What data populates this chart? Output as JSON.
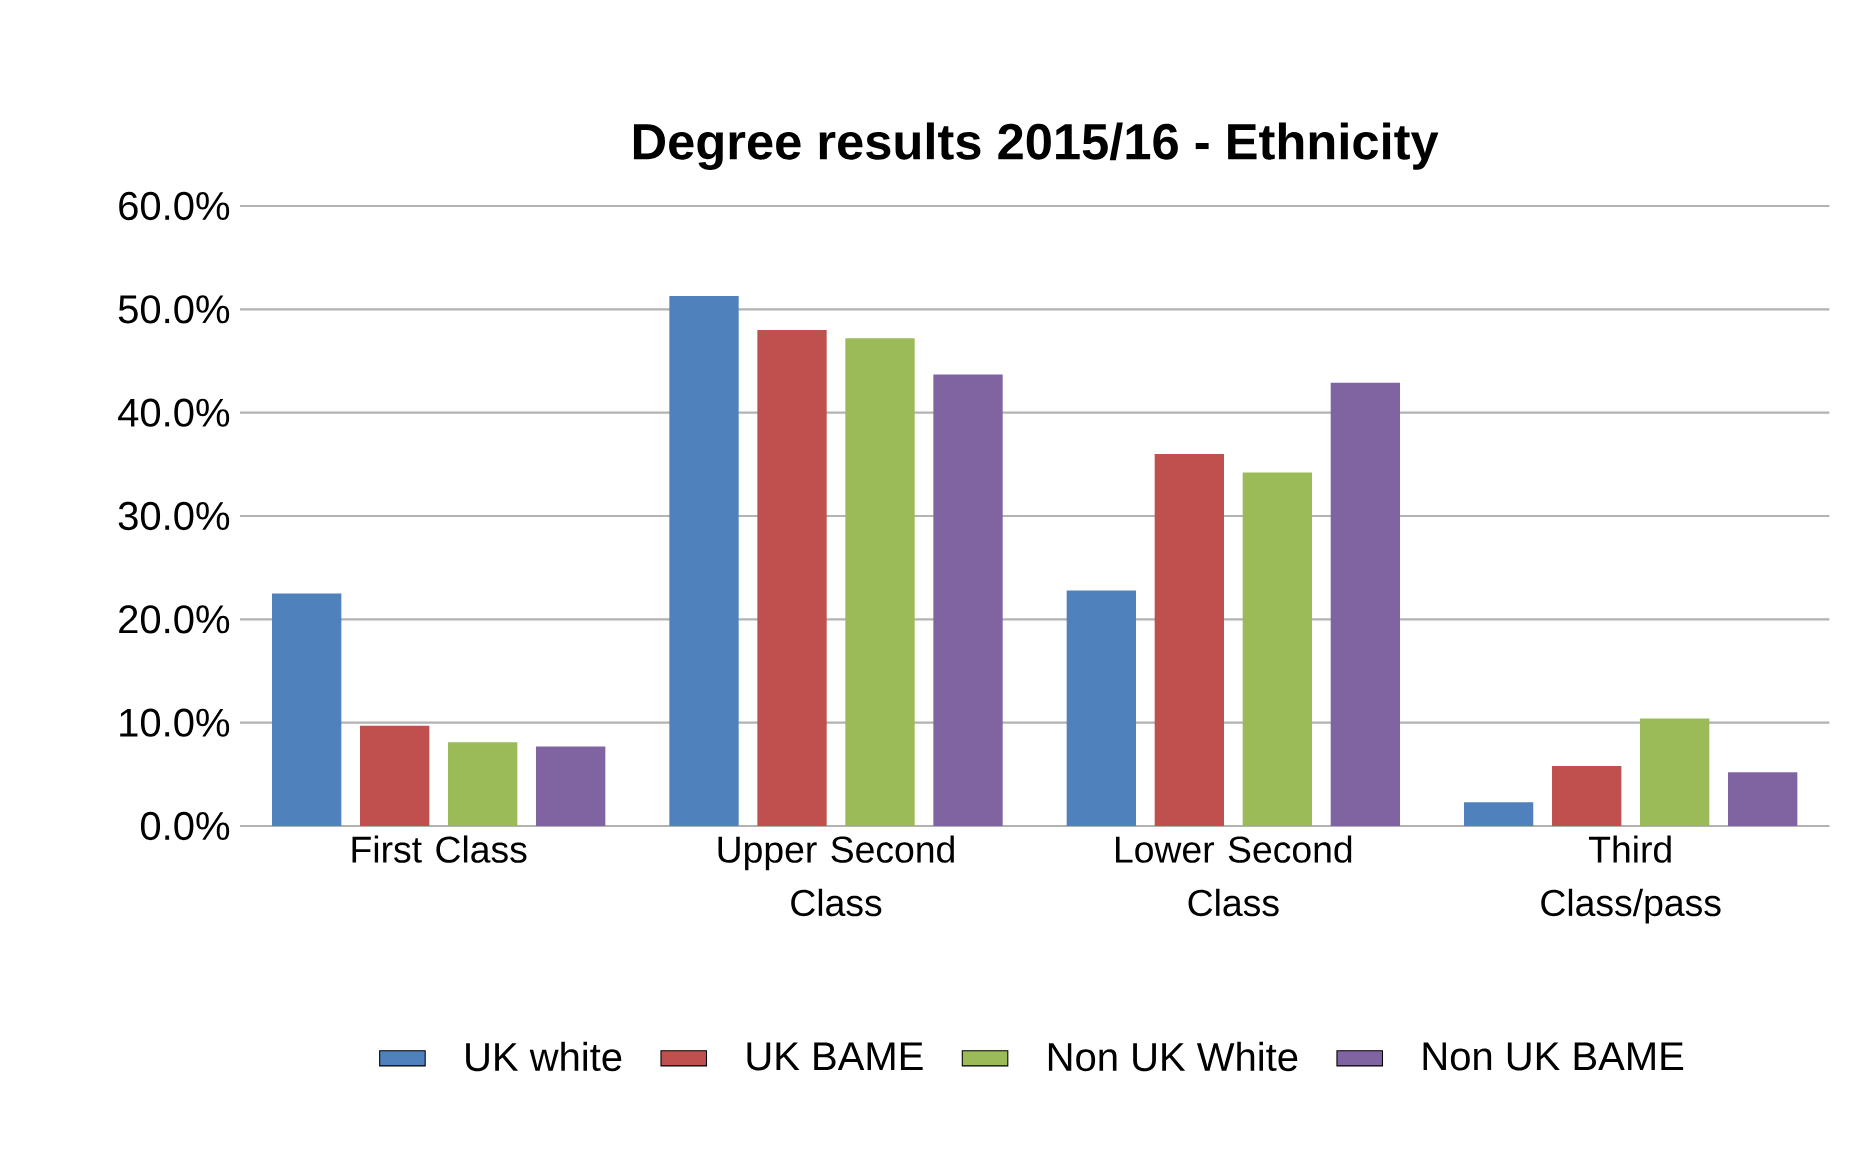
{
  "chart_data": {
    "type": "bar",
    "title": "Degree results 2015/16 - Ethnicity",
    "categories": [
      "First Class",
      "Upper Second Class",
      "Lower Second Class",
      "Third Class/pass"
    ],
    "series": [
      {
        "name": "UK white",
        "color": "#4f81bd",
        "values": [
          22.5,
          51.3,
          22.8,
          2.3
        ]
      },
      {
        "name": "UK BAME",
        "color": "#c0504d",
        "values": [
          9.7,
          48.0,
          36.0,
          5.8
        ]
      },
      {
        "name": "Non UK White",
        "color": "#9bbb59",
        "values": [
          8.1,
          47.2,
          34.2,
          10.4
        ]
      },
      {
        "name": "Non UK BAME",
        "color": "#8064a2",
        "values": [
          7.7,
          43.7,
          42.9,
          5.2
        ]
      }
    ],
    "ylim": [
      0,
      60
    ],
    "yticks": [
      {
        "value": 0,
        "label": "0.0%"
      },
      {
        "value": 10,
        "label": "10.0%"
      },
      {
        "value": 20,
        "label": "20.0%"
      },
      {
        "value": 30,
        "label": "30.0%"
      },
      {
        "value": 40,
        "label": "40.0%"
      },
      {
        "value": 50,
        "label": "50.0%"
      },
      {
        "value": 60,
        "label": "60.0%"
      }
    ],
    "grid": "y",
    "legend": "bottom"
  }
}
